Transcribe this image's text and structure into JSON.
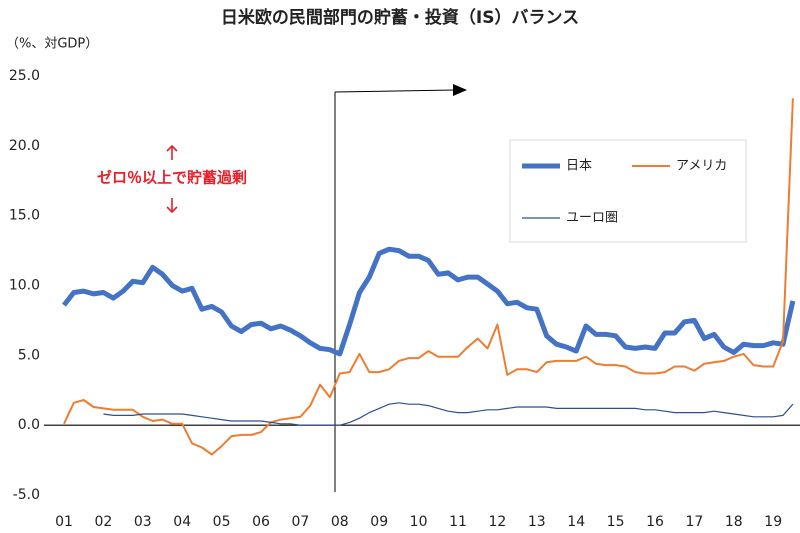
{
  "chart_data": {
    "type": "line",
    "title": "日米欧の民間部門の貯蓄・投資（IS）バランス",
    "y_axis_label": "（%、対GDP）",
    "annotation": "ゼロ％以上で貯蓄過剰",
    "categories": [
      "01",
      null,
      null,
      null,
      "02",
      null,
      null,
      null,
      "03",
      null,
      null,
      null,
      "04",
      null,
      null,
      null,
      "05",
      null,
      null,
      null,
      "06",
      null,
      null,
      null,
      "07",
      null,
      null,
      null,
      "08",
      null,
      null,
      null,
      "09",
      null,
      null,
      null,
      "10",
      null,
      null,
      null,
      "11",
      null,
      null,
      null,
      "12",
      null,
      null,
      null,
      "13",
      null,
      null,
      null,
      "14",
      null,
      null,
      null,
      "15",
      null,
      null,
      null,
      "16",
      null,
      null,
      null,
      "17",
      null,
      null,
      null,
      "18",
      null,
      null,
      null,
      "19",
      null,
      null
    ],
    "ylim": [
      -5,
      25
    ],
    "yticks": [
      {
        "value": -5,
        "label": "-5.0"
      },
      {
        "value": 0,
        "label": "0.0"
      },
      {
        "value": 5,
        "label": "5.0"
      },
      {
        "value": 10,
        "label": "10.0"
      },
      {
        "value": 15,
        "label": "15.0"
      },
      {
        "value": 20,
        "label": "20.0"
      },
      {
        "value": 25,
        "label": "25.0"
      }
    ],
    "series": [
      {
        "name": "日本",
        "color": "#4472c4",
        "values": [
          8.6,
          9.5,
          9.6,
          9.4,
          9.5,
          9.1,
          9.6,
          10.3,
          10.2,
          11.3,
          10.8,
          10.0,
          9.6,
          9.8,
          8.3,
          8.5,
          8.1,
          7.1,
          6.7,
          7.2,
          7.3,
          6.9,
          7.1,
          6.8,
          6.4,
          5.9,
          5.5,
          5.4,
          5.1,
          7.2,
          9.5,
          10.6,
          12.3,
          12.6,
          12.5,
          12.1,
          12.1,
          11.8,
          10.8,
          10.9,
          10.4,
          10.6,
          10.6,
          10.1,
          9.6,
          8.7,
          8.8,
          8.4,
          8.3,
          6.4,
          5.8,
          5.6,
          5.3,
          7.1,
          6.5,
          6.5,
          6.4,
          5.6,
          5.5,
          5.6,
          5.5,
          6.6,
          6.6,
          7.4,
          7.5,
          6.2,
          6.5,
          5.6,
          5.2,
          5.8,
          5.7,
          5.7,
          5.9,
          5.8,
          8.9
        ]
      },
      {
        "name": "アメリカ",
        "color": "#ed7d31",
        "values": [
          0.1,
          1.6,
          1.8,
          1.3,
          1.2,
          1.1,
          1.1,
          1.1,
          0.6,
          0.3,
          0.4,
          0.1,
          0.1,
          -1.3,
          -1.6,
          -2.1,
          -1.5,
          -0.8,
          -0.7,
          -0.7,
          -0.5,
          0.2,
          0.4,
          0.5,
          0.6,
          1.4,
          2.9,
          2.0,
          3.7,
          3.8,
          5.1,
          3.8,
          3.8,
          4.0,
          4.6,
          4.8,
          4.8,
          5.3,
          4.9,
          4.9,
          4.9,
          5.6,
          6.2,
          5.5,
          7.2,
          3.6,
          4.0,
          4.0,
          3.8,
          4.5,
          4.6,
          4.6,
          4.6,
          4.9,
          4.4,
          4.3,
          4.3,
          4.2,
          3.8,
          3.7,
          3.7,
          3.8,
          4.2,
          4.2,
          3.9,
          4.4,
          4.5,
          4.6,
          4.9,
          5.1,
          4.3,
          4.2,
          4.2,
          6.0,
          23.4
        ]
      },
      {
        "name": "ユーロ圏",
        "color": "#2f4f8f",
        "values": [
          null,
          null,
          null,
          null,
          0.8,
          0.7,
          0.7,
          0.7,
          0.8,
          0.8,
          0.8,
          0.8,
          0.8,
          0.7,
          0.6,
          0.5,
          0.4,
          0.3,
          0.3,
          0.3,
          0.3,
          0.2,
          0.1,
          0.1,
          0.0,
          0.0,
          0.0,
          0.0,
          0.0,
          0.2,
          0.5,
          0.9,
          1.2,
          1.5,
          1.6,
          1.5,
          1.5,
          1.4,
          1.2,
          1.0,
          0.9,
          0.9,
          1.0,
          1.1,
          1.1,
          1.2,
          1.3,
          1.3,
          1.3,
          1.3,
          1.2,
          1.2,
          1.2,
          1.2,
          1.2,
          1.2,
          1.2,
          1.2,
          1.2,
          1.1,
          1.1,
          1.0,
          0.9,
          0.9,
          0.9,
          0.9,
          1.0,
          0.9,
          0.8,
          0.7,
          0.6,
          0.6,
          0.6,
          0.7,
          1.5
        ]
      }
    ]
  }
}
